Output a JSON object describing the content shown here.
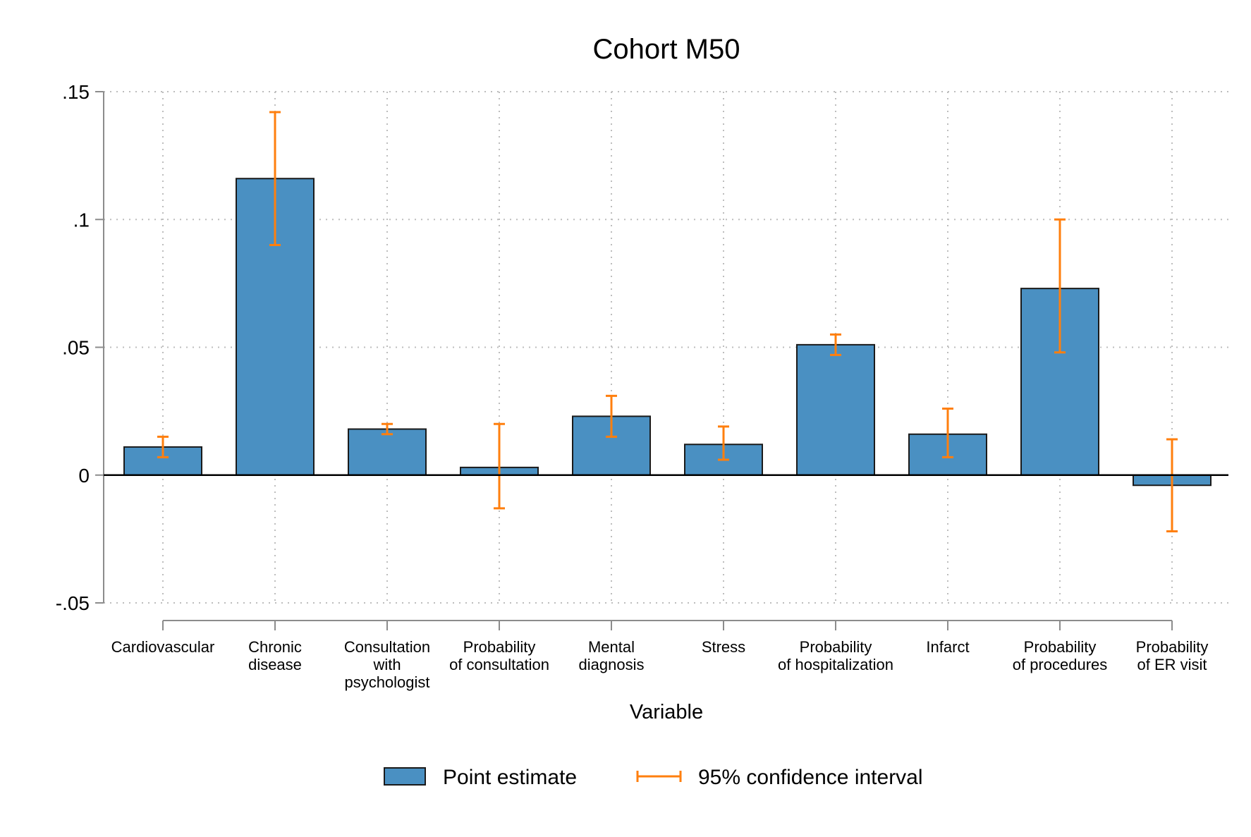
{
  "chart_data": {
    "type": "bar",
    "title": "Cohort M50",
    "xlabel": "Variable",
    "ylabel": "",
    "ylim": [
      -0.05,
      0.15
    ],
    "yticks": [
      {
        "value": 0.15,
        "label": ".15"
      },
      {
        "value": 0.1,
        "label": ".1"
      },
      {
        "value": 0.05,
        "label": ".05"
      },
      {
        "value": 0,
        "label": "0"
      },
      {
        "value": -0.05,
        "label": "-.05"
      }
    ],
    "grid": true,
    "legend_position": "bottom",
    "categories": [
      [
        "Cardiovascular"
      ],
      [
        "Chronic",
        "disease"
      ],
      [
        "Consultation",
        "with",
        "psychologist"
      ],
      [
        "Probability",
        "of consultation"
      ],
      [
        "Mental",
        "diagnosis"
      ],
      [
        "Stress"
      ],
      [
        "Probability",
        "of hospitalization"
      ],
      [
        "Infarct"
      ],
      [
        "Probability",
        "of procedures"
      ],
      [
        "Probability",
        "of ER visit"
      ]
    ],
    "series": [
      {
        "name": "Point estimate",
        "color": "#4a90c2",
        "values": [
          0.011,
          0.116,
          0.018,
          0.003,
          0.023,
          0.012,
          0.051,
          0.016,
          0.073,
          -0.004
        ]
      },
      {
        "name": "95% confidence interval",
        "color": "#ff7f0e",
        "lower": [
          0.007,
          0.09,
          0.016,
          -0.013,
          0.015,
          0.006,
          0.047,
          0.007,
          0.048,
          -0.022
        ],
        "upper": [
          0.015,
          0.142,
          0.02,
          0.02,
          0.031,
          0.019,
          0.055,
          0.026,
          0.1,
          0.014
        ]
      }
    ]
  }
}
